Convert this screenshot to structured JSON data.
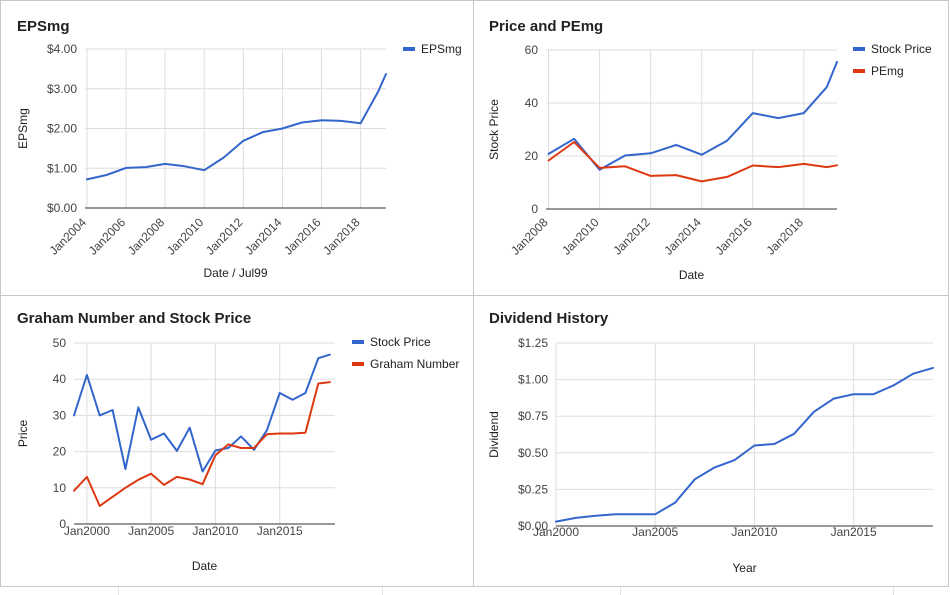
{
  "chart_data": [
    {
      "type": "line",
      "title": "EPSmg",
      "xlabel": "Date / Jul99",
      "ylabel": "EPSmg",
      "ylim": [
        0,
        4
      ],
      "yticks": [
        "$0.00",
        "$1.00",
        "$2.00",
        "$3.00",
        "$4.00"
      ],
      "xlim": [
        2003.9,
        2019.3
      ],
      "xticks": [
        {
          "x": 2004,
          "label": "Jan2004"
        },
        {
          "x": 2006,
          "label": "Jan2006"
        },
        {
          "x": 2008,
          "label": "Jan2008"
        },
        {
          "x": 2010,
          "label": "Jan2010"
        },
        {
          "x": 2012,
          "label": "Jan2012"
        },
        {
          "x": 2014,
          "label": "Jan2014"
        },
        {
          "x": 2016,
          "label": "Jan2016"
        },
        {
          "x": 2018,
          "label": "Jan2018"
        }
      ],
      "xtick_rotate": true,
      "grid": true,
      "legend": "top-right",
      "series": [
        {
          "name": "EPSmg",
          "color": "#3366cc",
          "x": [
            2004,
            2005,
            2006,
            2007,
            2008,
            2009,
            2010,
            2011,
            2012,
            2013,
            2014,
            2015,
            2016,
            2017,
            2018,
            2018.9,
            2019.3
          ],
          "y": [
            0.72,
            0.83,
            1.01,
            1.03,
            1.11,
            1.05,
            0.95,
            1.27,
            1.69,
            1.91,
            2.0,
            2.15,
            2.21,
            2.19,
            2.13,
            2.93,
            3.37
          ]
        }
      ]
    },
    {
      "type": "line",
      "title": "Price and PEmg",
      "xlabel": "Date",
      "ylabel": "Stock Price",
      "ylim": [
        0,
        60
      ],
      "yticks": [
        "0",
        "20",
        "40",
        "60"
      ],
      "xlim": [
        2007.9,
        2019.3
      ],
      "xticks": [
        {
          "x": 2008,
          "label": "Jan2008"
        },
        {
          "x": 2010,
          "label": "Jan2010"
        },
        {
          "x": 2012,
          "label": "Jan2012"
        },
        {
          "x": 2014,
          "label": "Jan2014"
        },
        {
          "x": 2016,
          "label": "Jan2016"
        },
        {
          "x": 2018,
          "label": "Jan2018"
        }
      ],
      "xtick_rotate": true,
      "grid": true,
      "legend": "top-right",
      "series": [
        {
          "name": "Stock Price",
          "color": "#3366cc",
          "x": [
            2008,
            2009,
            2010,
            2011,
            2012,
            2013,
            2014,
            2015,
            2016,
            2017,
            2018,
            2018.9,
            2019.3
          ],
          "y": [
            20.8,
            26.5,
            14.8,
            20.2,
            21.0,
            24.2,
            20.5,
            25.8,
            36.2,
            34.3,
            36.2,
            46.0,
            55.5
          ]
        },
        {
          "name": "PEmg",
          "color": "#dc3912",
          "x": [
            2008,
            2009,
            2010,
            2011,
            2012,
            2013,
            2014,
            2015,
            2016,
            2017,
            2018,
            2018.9,
            2019.3
          ],
          "y": [
            18.3,
            25.3,
            15.5,
            16.1,
            12.5,
            12.8,
            10.4,
            12.1,
            16.4,
            15.8,
            17.0,
            15.8,
            16.5
          ]
        }
      ]
    },
    {
      "type": "line",
      "title": "Graham Number and Stock Price",
      "xlabel": "Date",
      "ylabel": "Price",
      "ylim": [
        0,
        50
      ],
      "yticks": [
        "0",
        "10",
        "20",
        "30",
        "40",
        "50"
      ],
      "xlim": [
        1999.0,
        2019.3
      ],
      "xticks": [
        {
          "x": 2000,
          "label": "Jan2000"
        },
        {
          "x": 2005,
          "label": "Jan2005"
        },
        {
          "x": 2010,
          "label": "Jan2010"
        },
        {
          "x": 2015,
          "label": "Jan2015"
        }
      ],
      "xtick_rotate": false,
      "grid": true,
      "legend": "top-right",
      "series": [
        {
          "name": "Stock Price",
          "color": "#3366cc",
          "x": [
            1999.0,
            2000.0,
            2001.0,
            2002.0,
            2003.0,
            2004.0,
            2005.0,
            2006.0,
            2007.0,
            2008.0,
            2009.0,
            2010.0,
            2011.0,
            2012.0,
            2013.0,
            2014.0,
            2015.0,
            2016.0,
            2017.0,
            2018.0,
            2018.9
          ],
          "y": [
            30.0,
            41.2,
            30.0,
            31.5,
            15.2,
            32.2,
            23.3,
            25.0,
            20.2,
            26.6,
            14.5,
            20.3,
            21.0,
            24.2,
            20.5,
            25.9,
            36.2,
            34.3,
            36.2,
            45.8,
            46.8
          ]
        },
        {
          "name": "Graham Number",
          "color": "#dc3912",
          "x": [
            1999.0,
            2000.0,
            2001.0,
            2002.0,
            2003.0,
            2004.0,
            2005.0,
            2006.0,
            2007.0,
            2008.0,
            2009.0,
            2010.0,
            2011.0,
            2012.0,
            2013.0,
            2014.0,
            2015.0,
            2016.0,
            2017.0,
            2018.0,
            2018.9
          ],
          "y": [
            9.2,
            13.0,
            5.0,
            7.5,
            10.0,
            12.2,
            13.9,
            10.8,
            13.0,
            12.3,
            11.0,
            19.0,
            22.0,
            21.0,
            21.0,
            24.8,
            25.0,
            25.0,
            25.2,
            38.8,
            39.2
          ]
        }
      ]
    },
    {
      "type": "line",
      "title": "Dividend History",
      "xlabel": "Year",
      "ylabel": "Dividend",
      "ylim": [
        0,
        1.25
      ],
      "yticks": [
        "$0.00",
        "$0.25",
        "$0.50",
        "$0.75",
        "$1.00",
        "$1.25"
      ],
      "xlim": [
        2000,
        2019
      ],
      "xticks": [
        {
          "x": 2000,
          "label": "Jan2000"
        },
        {
          "x": 2005,
          "label": "Jan2005"
        },
        {
          "x": 2010,
          "label": "Jan2010"
        },
        {
          "x": 2015,
          "label": "Jan2015"
        }
      ],
      "xtick_rotate": false,
      "grid": true,
      "legend": "none",
      "series": [
        {
          "color": "#3366cc",
          "x": [
            2000,
            2001,
            2002,
            2003,
            2004,
            2005,
            2006,
            2007,
            2008,
            2009,
            2010,
            2011,
            2012,
            2013,
            2014,
            2015,
            2016,
            2017,
            2018,
            2019
          ],
          "y": [
            0.03,
            0.055,
            0.07,
            0.08,
            0.08,
            0.08,
            0.16,
            0.32,
            0.4,
            0.45,
            0.55,
            0.56,
            0.63,
            0.78,
            0.87,
            0.9,
            0.9,
            0.96,
            1.04,
            1.08
          ]
        }
      ]
    }
  ]
}
